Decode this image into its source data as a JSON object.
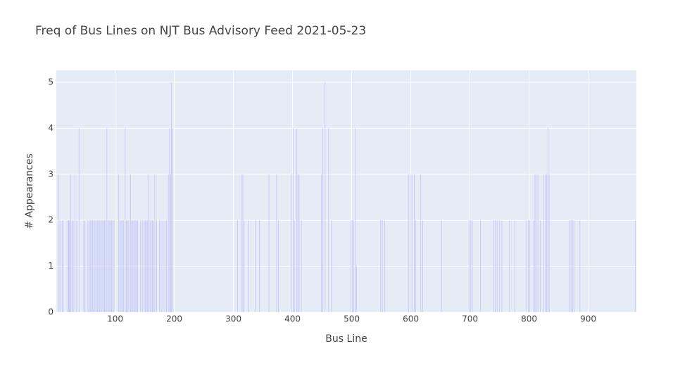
{
  "chart_data": {
    "type": "bar",
    "title": "Freq of Bus Lines on NJT Bus Advisory Feed 2021-05-23",
    "x_label": "Bus Line",
    "y_label": "# Appearances",
    "x": [
      5,
      8,
      11,
      12,
      20,
      21,
      22,
      23,
      25,
      27,
      29,
      32,
      35,
      39,
      47,
      49,
      54,
      56,
      58,
      60,
      62,
      64,
      66,
      68,
      70,
      72,
      74,
      76,
      78,
      80,
      82,
      84,
      86,
      88,
      90,
      92,
      94,
      96,
      98,
      106,
      108,
      110,
      112,
      114,
      117,
      119,
      121,
      123,
      126,
      128,
      130,
      132,
      134,
      136,
      138,
      143,
      146,
      149,
      151,
      153,
      155,
      157,
      159,
      161,
      163,
      165,
      167,
      170,
      175,
      178,
      181,
      184,
      187,
      190,
      192,
      194,
      195,
      197,
      307,
      313,
      316,
      318,
      326,
      337,
      344,
      360,
      373,
      376,
      399,
      401,
      403,
      407,
      409,
      411,
      415,
      449,
      451,
      455,
      461,
      466,
      499,
      501,
      503,
      506,
      508,
      549,
      552,
      556,
      596,
      599,
      602,
      606,
      608,
      617,
      620,
      652,
      699,
      701,
      704,
      718,
      740,
      743,
      746,
      750,
      754,
      767,
      776,
      796,
      799,
      801,
      808,
      810,
      812,
      815,
      819,
      825,
      828,
      830,
      832,
      834,
      868,
      871,
      874,
      876,
      886,
      980
    ],
    "values": [
      3,
      2,
      2,
      2,
      2,
      2,
      2,
      2,
      3,
      2,
      2,
      3,
      2,
      4,
      2,
      2,
      2,
      2,
      2,
      2,
      2,
      2,
      2,
      2,
      2,
      2,
      2,
      2,
      2,
      2,
      2,
      2,
      4,
      2,
      2,
      2,
      2,
      2,
      2,
      3,
      2,
      2,
      2,
      2,
      4,
      2,
      2,
      2,
      3,
      2,
      2,
      2,
      2,
      2,
      2,
      2,
      2,
      2,
      2,
      2,
      2,
      3,
      2,
      2,
      2,
      2,
      3,
      2,
      2,
      2,
      2,
      2,
      2,
      3,
      4,
      3,
      5,
      4,
      2,
      3,
      3,
      2,
      2,
      2,
      2,
      3,
      3,
      2,
      3,
      4,
      2,
      4,
      3,
      3,
      2,
      3,
      4,
      5,
      4,
      2,
      2,
      2,
      2,
      4,
      1,
      2,
      2,
      2,
      3,
      3,
      3,
      3,
      2,
      3,
      2,
      2,
      2,
      2,
      2,
      2,
      2,
      2,
      2,
      2,
      2,
      2,
      2,
      2,
      2,
      2,
      2,
      3,
      3,
      3,
      2,
      3,
      3,
      3,
      4,
      3,
      2,
      2,
      2,
      2,
      2,
      2
    ],
    "color": "#c8ccf6",
    "xlim": [
      0.5,
      981.5
    ],
    "xticks": [
      100,
      200,
      300,
      400,
      500,
      600,
      700,
      800,
      900
    ],
    "ylim": [
      0,
      5.26
    ],
    "yticks": [
      0,
      1,
      2,
      3,
      4,
      5
    ],
    "grid": true
  }
}
